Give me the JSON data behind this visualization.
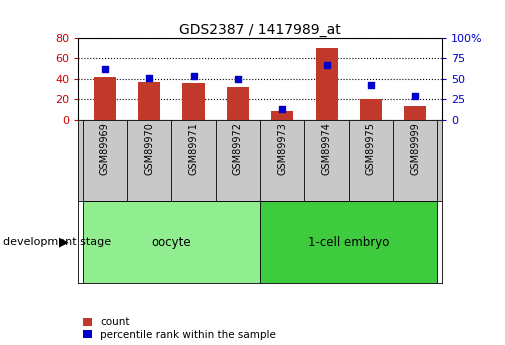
{
  "title": "GDS2387 / 1417989_at",
  "samples": [
    "GSM89969",
    "GSM89970",
    "GSM89971",
    "GSM89972",
    "GSM89973",
    "GSM89974",
    "GSM89975",
    "GSM89999"
  ],
  "counts": [
    42,
    37,
    36,
    32,
    8,
    70,
    20,
    13
  ],
  "percentiles": [
    62,
    51,
    54,
    50,
    13,
    67,
    42,
    29
  ],
  "bar_color": "#C0392B",
  "dot_color": "#0000CC",
  "left_ylim": [
    0,
    80
  ],
  "right_ylim": [
    0,
    100
  ],
  "left_yticks": [
    0,
    20,
    40,
    60,
    80
  ],
  "right_yticks": [
    0,
    25,
    50,
    75,
    100
  ],
  "right_yticklabels": [
    "0",
    "25",
    "50",
    "75",
    "100%"
  ],
  "groups": [
    {
      "label": "oocyte",
      "indices": [
        0,
        1,
        2,
        3
      ],
      "color": "#90EE90"
    },
    {
      "label": "1-cell embryo",
      "indices": [
        4,
        5,
        6,
        7
      ],
      "color": "#3ECC3E"
    }
  ],
  "xlabel_left": "development stage",
  "legend_count_label": "count",
  "legend_percentile_label": "percentile rank within the sample",
  "grid_color": "black",
  "grid_linestyle": "dotted",
  "grid_linewidth": 0.8,
  "bar_width": 0.5,
  "tick_area_bg": "#C8C8C8",
  "plot_bg": "#FFFFFF",
  "left_axis_color": "#CC0000",
  "right_axis_color": "#0000CC"
}
